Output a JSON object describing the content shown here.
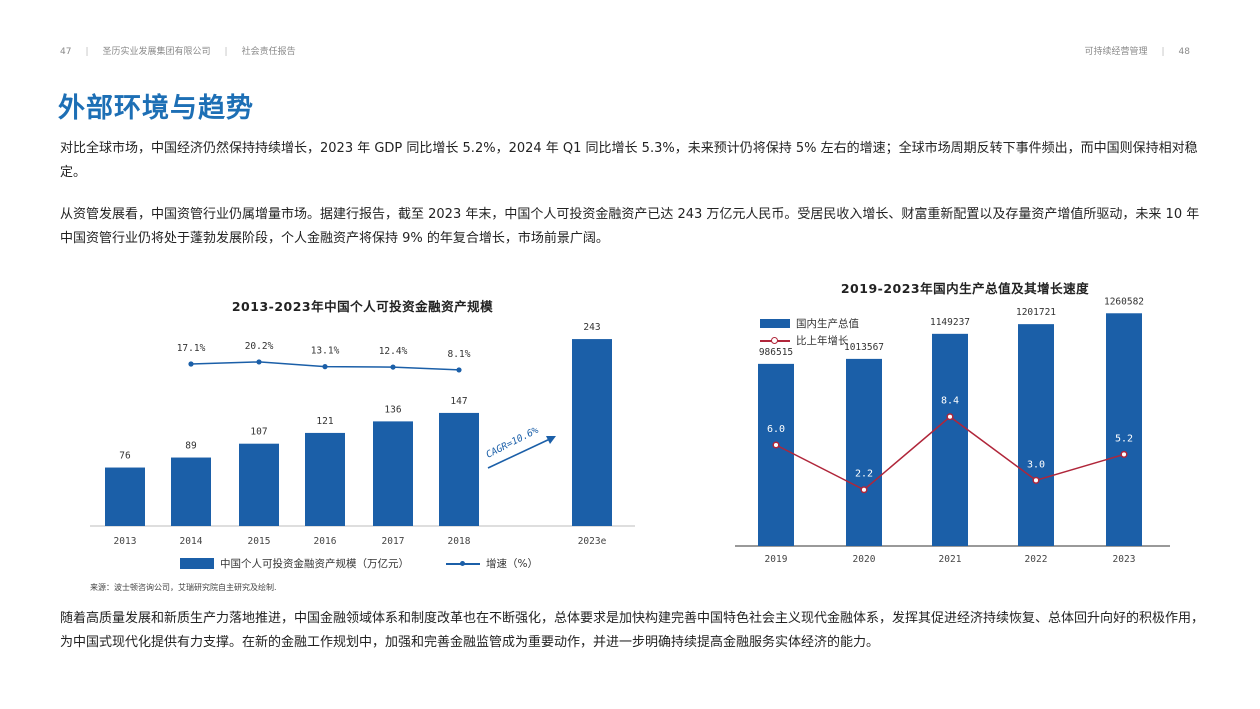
{
  "header": {
    "left_page": "47",
    "company": "圣历实业发展集团有限公司",
    "report": "社会责任报告",
    "section": "可持续经营管理",
    "right_page": "48"
  },
  "title": "外部环境与趋势",
  "paragraphs": {
    "p1": "对比全球市场，中国经济仍然保持持续增长，2023 年 GDP 同比增长 5.2%，2024 年 Q1 同比增长 5.3%，未来预计仍将保持 5% 左右的增速；全球市场周期反转下事件频出，而中国则保持相对稳定。",
    "p2": "从资管发展看，中国资管行业仍属增量市场。据建行报告，截至 2023 年末，中国个人可投资金融资产已达 243 万亿元人民币。受居民收入增长、财富重新配置以及存量资产增值所驱动，未来 10 年中国资管行业仍将处于蓬勃发展阶段，个人金融资产将保持 9% 的年复合增长，市场前景广阔。",
    "p3": "随着高质量发展和新质生产力落地推进，中国金融领域体系和制度改革也在不断强化，总体要求是加快构建完善中国特色社会主义现代金融体系，发挥其促进经济持续恢复、总体回升向好的积极作用，为中国式现代化提供有力支撑。在新的金融工作规划中，加强和完善金融监管成为重要动作，并进一步明确持续提高金融服务实体经济的能力。"
  },
  "source_note": "来源：波士顿咨询公司，艾瑞研究院自主研究及绘制.",
  "chart_data": [
    {
      "type": "bar",
      "title": "2013-2023年中国个人可投资金融资产规模",
      "categories": [
        "2013",
        "2014",
        "2015",
        "2016",
        "2017",
        "2018",
        "2023e"
      ],
      "series": [
        {
          "name": "中国个人可投资金融资产规模（万亿元）",
          "type": "bar",
          "values": [
            76,
            89,
            107,
            121,
            136,
            147,
            243
          ]
        },
        {
          "name": "增速（%）",
          "type": "line",
          "values": [
            null,
            17.1,
            20.2,
            13.1,
            12.4,
            8.1,
            null
          ],
          "labels": [
            "",
            "17.1%",
            "20.2%",
            "13.1%",
            "12.4%",
            "8.1%",
            ""
          ]
        }
      ],
      "annotation": "CAGR=10.6%",
      "ylim": [
        0,
        260
      ],
      "legend_position": "bottom",
      "colors": {
        "bar": "#1b5fa8",
        "line": "#1b5fa8"
      }
    },
    {
      "type": "bar",
      "title": "2019-2023年国内生产总值及其增长速度",
      "categories": [
        "2019",
        "2020",
        "2021",
        "2022",
        "2023"
      ],
      "series": [
        {
          "name": "国内生产总值",
          "type": "bar",
          "values": [
            986515,
            1013567,
            1149237,
            1201721,
            1260582
          ]
        },
        {
          "name": "比上年增长",
          "type": "line",
          "values": [
            6.0,
            2.2,
            8.4,
            3.0,
            5.2
          ],
          "labels": [
            "6.0",
            "2.2",
            "8.4",
            "3.0",
            "5.2"
          ]
        }
      ],
      "ylim": [
        0,
        1300000
      ],
      "y2lim": [
        0,
        20
      ],
      "legend_position": "top-left",
      "colors": {
        "bar": "#1b5fa8",
        "line": "#b0263a"
      }
    }
  ]
}
